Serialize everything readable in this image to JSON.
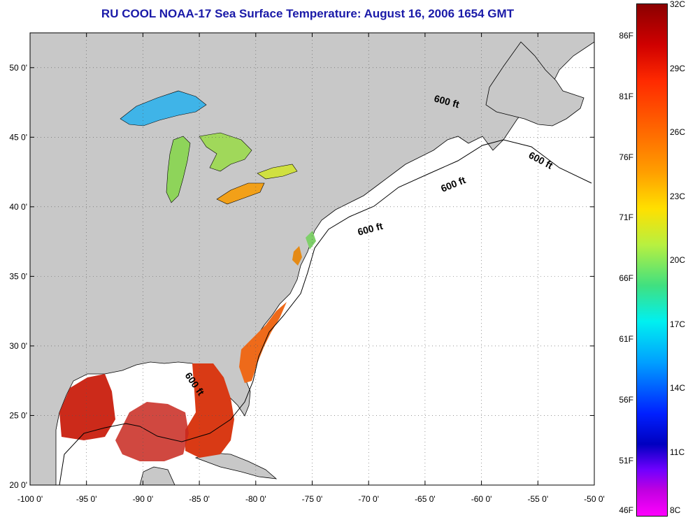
{
  "title": "RU COOL  NOAA-17  Sea Surface Temperature:  August 16, 2006 1654 GMT",
  "map": {
    "lon_range": [
      -100,
      -50
    ],
    "lat_range": [
      20,
      52.5
    ],
    "lon_ticks": [
      "-100 0'",
      "-95 0'",
      "-90 0'",
      "-85 0'",
      "-80 0'",
      "-75 0'",
      "-70 0'",
      "-65 0'",
      "-60 0'",
      "-55 0'",
      "-50 0'"
    ],
    "lat_ticks": [
      "20 0'",
      "25 0'",
      "30 0'",
      "35 0'",
      "40 0'",
      "45 0'",
      "50 0'"
    ],
    "isobath_labels": [
      "600 ft",
      "600 ft",
      "600 ft",
      "600 ft",
      "600 ft"
    ],
    "colors": {
      "land": "#c8c8c8",
      "ocean": "#ffffff",
      "title": "#1a1aa8"
    }
  },
  "colorbar": {
    "celsius": [
      "32C",
      "29C",
      "26C",
      "23C",
      "20C",
      "17C",
      "14C",
      "11C",
      "8C"
    ],
    "fahrenheit": [
      "86F",
      "81F",
      "76F",
      "71F",
      "66F",
      "61F",
      "56F",
      "51F",
      "46F"
    ]
  }
}
